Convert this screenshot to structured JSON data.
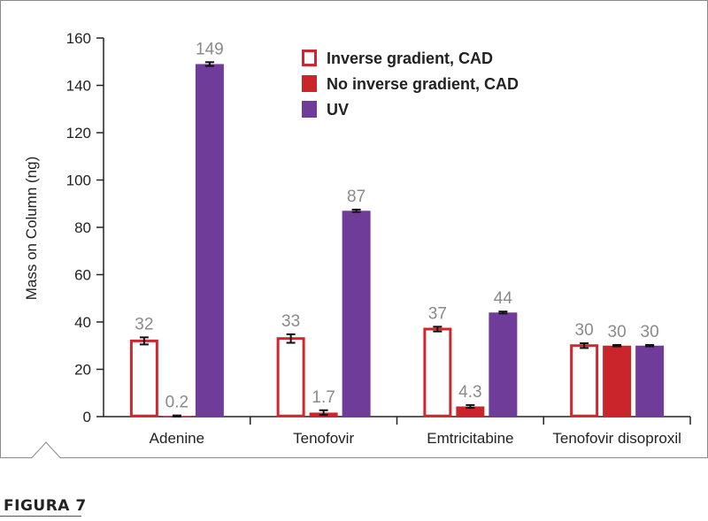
{
  "figure_label": "FIGURA 7",
  "chart_data": {
    "type": "bar",
    "ylabel": "Mass on Column (ng)",
    "xlabel": "",
    "ylim": [
      0,
      160
    ],
    "yticks": [
      0,
      20,
      40,
      60,
      80,
      100,
      120,
      140,
      160
    ],
    "categories": [
      "Adenine",
      "Tenofovir",
      "Emtricitabine",
      "Tenofovir disoproxil"
    ],
    "legend_position": "top-center",
    "series": [
      {
        "name": "Inverse gradient, CAD",
        "style": "outline",
        "color": "#d0262d",
        "values": [
          32,
          33,
          37,
          30
        ],
        "labels": [
          "32",
          "33",
          "37",
          "30"
        ],
        "errors": [
          1.5,
          1.8,
          1.0,
          1.0
        ]
      },
      {
        "name": "No inverse gradient, CAD",
        "style": "filled",
        "color": "#c9252b",
        "values": [
          0.2,
          1.7,
          4.3,
          30
        ],
        "labels": [
          "0.2",
          "1.7",
          "4.3",
          "30"
        ],
        "errors": [
          0.3,
          1.0,
          0.6,
          0.3
        ]
      },
      {
        "name": "UV",
        "style": "filled",
        "color": "#6f3c9a",
        "values": [
          149,
          87,
          44,
          30
        ],
        "labels": [
          "149",
          "87",
          "44",
          "30"
        ],
        "errors": [
          0.8,
          0.5,
          0.4,
          0.3
        ]
      }
    ]
  }
}
